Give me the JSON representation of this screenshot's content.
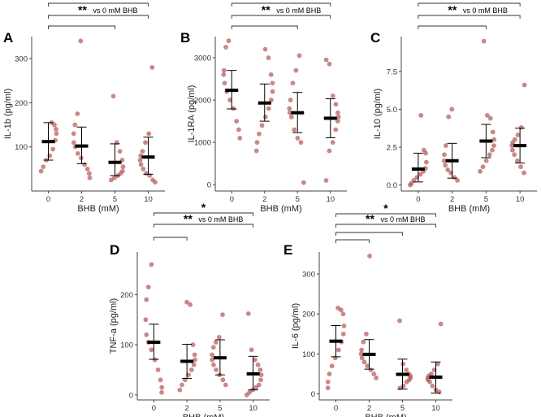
{
  "figure": {
    "style": {
      "point_color": "#b55a5a",
      "line_color": "#000000",
      "axis_color": "#444444"
    },
    "panels": [
      {
        "letter": "A",
        "chart_data": {
          "type": "scatter",
          "categories": [
            "0",
            "2",
            "5",
            "10"
          ],
          "xlabel": "BHB (mM)",
          "ylabel": "IL-1b (pg/ml)",
          "ylim": [
            0,
            350
          ],
          "yticks": [
            100,
            200,
            300
          ],
          "ytick_labels": [
            "100",
            "200",
            "300"
          ],
          "points": [
            [
              155,
              150,
              140,
              130,
              115,
              95,
              80,
              70,
              55,
              45
            ],
            [
              340,
              175,
              150,
              130,
              110,
              100,
              85,
              75,
              60,
              50,
              40,
              30
            ],
            [
              215,
              110,
              90,
              70,
              55,
              45,
              40,
              35,
              30,
              25
            ],
            [
              280,
              130,
              110,
              90,
              80,
              70,
              60,
              50,
              40,
              35,
              25,
              20
            ]
          ],
          "means": [
            112,
            102,
            65,
            77
          ],
          "errors": [
            [
              70,
              155
            ],
            [
              62,
              145
            ],
            [
              35,
              107
            ],
            [
              38,
              122
            ]
          ],
          "comparisons": [
            {
              "from": "0",
              "to": "5",
              "label": ""
            },
            {
              "from": "0",
              "to": "10",
              "label": "vs 0 mM BHB",
              "stars": "**"
            },
            {
              "from": "0",
              "to": "10",
              "label": "",
              "stars": "*"
            }
          ]
        }
      },
      {
        "letter": "B",
        "chart_data": {
          "type": "scatter",
          "categories": [
            "0",
            "2",
            "5",
            "10"
          ],
          "xlabel": "BHB (mM)",
          "ylabel": "IL-1RA (pg/ml)",
          "ylim": [
            -150,
            3500
          ],
          "yticks": [
            0,
            1000,
            2000,
            3000
          ],
          "ytick_labels": [
            "0",
            "1000",
            "2000",
            "3000"
          ],
          "points": [
            [
              3400,
              3250,
              2700,
              2600,
              2400,
              2200,
              2000,
              1800,
              1500,
              1300,
              1100
            ],
            [
              3200,
              3000,
              2600,
              2400,
              2200,
              2000,
              1800,
              1600,
              1400,
              1200,
              1000,
              800
            ],
            [
              3050,
              2700,
              2400,
              2000,
              1800,
              1700,
              1600,
              1300,
              1100,
              1000,
              50
            ],
            [
              2950,
              2850,
              2100,
              1900,
              1700,
              1600,
              1500,
              1300,
              1000,
              800,
              100
            ]
          ],
          "means": [
            2230,
            1930,
            1700,
            1570
          ],
          "errors": [
            [
              1790,
              2700
            ],
            [
              1500,
              2380
            ],
            [
              1230,
              2180
            ],
            [
              1110,
              2030
            ]
          ],
          "comparisons": [
            {
              "from": "0",
              "to": "5",
              "label": ""
            },
            {
              "from": "0",
              "to": "10",
              "label": "vs 0 mM BHB",
              "stars": "**"
            },
            {
              "from": "0",
              "to": "10",
              "label": "",
              "stars": "*"
            }
          ]
        }
      },
      {
        "letter": "C",
        "chart_data": {
          "type": "scatter",
          "categories": [
            "0",
            "2",
            "5",
            "10"
          ],
          "xlabel": "BHB (mM)",
          "ylabel": "IL-10 (pg/ml)",
          "ylim": [
            -0.4,
            9.8
          ],
          "yticks": [
            0,
            2.5,
            5,
            7.5
          ],
          "ytick_labels": [
            "0.0",
            "2.5",
            "5.0",
            "7.5"
          ],
          "points": [
            [
              4.6,
              2.3,
              2.1,
              1.5,
              1.1,
              0.9,
              0.7,
              0.5,
              0.3,
              0.1,
              0.0
            ],
            [
              5.0,
              4.5,
              2.6,
              2.0,
              1.6,
              1.3,
              1.0,
              0.8,
              0.5,
              0.3
            ],
            [
              9.5,
              4.6,
              4.4,
              3.5,
              3.0,
              2.6,
              2.3,
              2.0,
              1.6,
              1.2,
              0.9
            ],
            [
              6.6,
              3.8,
              3.3,
              3.0,
              2.8,
              2.6,
              2.3,
              2.0,
              1.6,
              1.2,
              0.8
            ]
          ],
          "means": [
            1.05,
            1.6,
            2.9,
            2.6
          ],
          "errors": [
            [
              0.2,
              2.1
            ],
            [
              0.45,
              2.75
            ],
            [
              1.8,
              4.0
            ],
            [
              1.45,
              3.75
            ]
          ],
          "comparisons": [
            {
              "from": "0",
              "to": "5",
              "label": ""
            },
            {
              "from": "0",
              "to": "10",
              "label": "vs 0 mM BHB",
              "stars": "**"
            },
            {
              "from": "0",
              "to": "10",
              "label": "",
              "stars": "*"
            }
          ]
        }
      },
      {
        "letter": "D",
        "chart_data": {
          "type": "scatter",
          "categories": [
            "0",
            "2",
            "5",
            "10"
          ],
          "xlabel": "BHB (mM)",
          "ylabel": "TNF-a (pg/ml)",
          "ylim": [
            -10,
            285
          ],
          "yticks": [
            0,
            100,
            200
          ],
          "ytick_labels": [
            "0",
            "100",
            "200"
          ],
          "points": [
            [
              260,
              215,
              190,
              150,
              120,
              105,
              90,
              70,
              50,
              30,
              15,
              5
            ],
            [
              185,
              180,
              100,
              80,
              70,
              60,
              50,
              40,
              30,
              20,
              10
            ],
            [
              160,
              115,
              105,
              95,
              80,
              70,
              60,
              50,
              40,
              30,
              20
            ],
            [
              162,
              90,
              70,
              60,
              50,
              40,
              30,
              20,
              15,
              10,
              5,
              0
            ]
          ],
          "means": [
            105,
            67,
            74,
            42
          ],
          "errors": [
            [
              71,
              141
            ],
            [
              33,
              101
            ],
            [
              40,
              110
            ],
            [
              10,
              77
            ]
          ],
          "comparisons": [
            {
              "from": "0",
              "to": "2",
              "label": ""
            },
            {
              "from": "0",
              "to": "10",
              "label": "vs 0 mM BHB",
              "stars": "**"
            },
            {
              "from": "0",
              "to": "10",
              "label": "",
              "stars": "*"
            }
          ]
        }
      },
      {
        "letter": "E",
        "chart_data": {
          "type": "scatter",
          "categories": [
            "0",
            "2",
            "5",
            "10"
          ],
          "xlabel": "BHB (mM)",
          "ylabel": "IL-6 (pg/ml)",
          "ylim": [
            -15,
            355
          ],
          "yticks": [
            0,
            100,
            200,
            300
          ],
          "ytick_labels": [
            "0",
            "100",
            "200",
            "300"
          ],
          "points": [
            [
              215,
              210,
              200,
              170,
              150,
              130,
              110,
              90,
              70,
              50,
              30,
              15
            ],
            [
              345,
              150,
              130,
              110,
              100,
              90,
              80,
              70,
              60,
              50,
              40
            ],
            [
              183,
              75,
              60,
              50,
              45,
              40,
              35,
              30,
              20,
              15
            ],
            [
              175,
              75,
              60,
              50,
              45,
              40,
              35,
              30,
              20,
              10,
              5
            ]
          ],
          "means": [
            132,
            99,
            49,
            42
          ],
          "errors": [
            [
              93,
              171
            ],
            [
              62,
              136
            ],
            [
              12,
              87
            ],
            [
              2,
              80
            ]
          ],
          "comparisons": [
            {
              "from": "0",
              "to": "2",
              "label": ""
            },
            {
              "from": "0",
              "to": "5",
              "label": ""
            },
            {
              "from": "0",
              "to": "10",
              "label": "vs 0 mM BHB",
              "stars": "**"
            },
            {
              "from": "0",
              "to": "10",
              "label": "",
              "stars": "*"
            }
          ]
        }
      }
    ]
  }
}
